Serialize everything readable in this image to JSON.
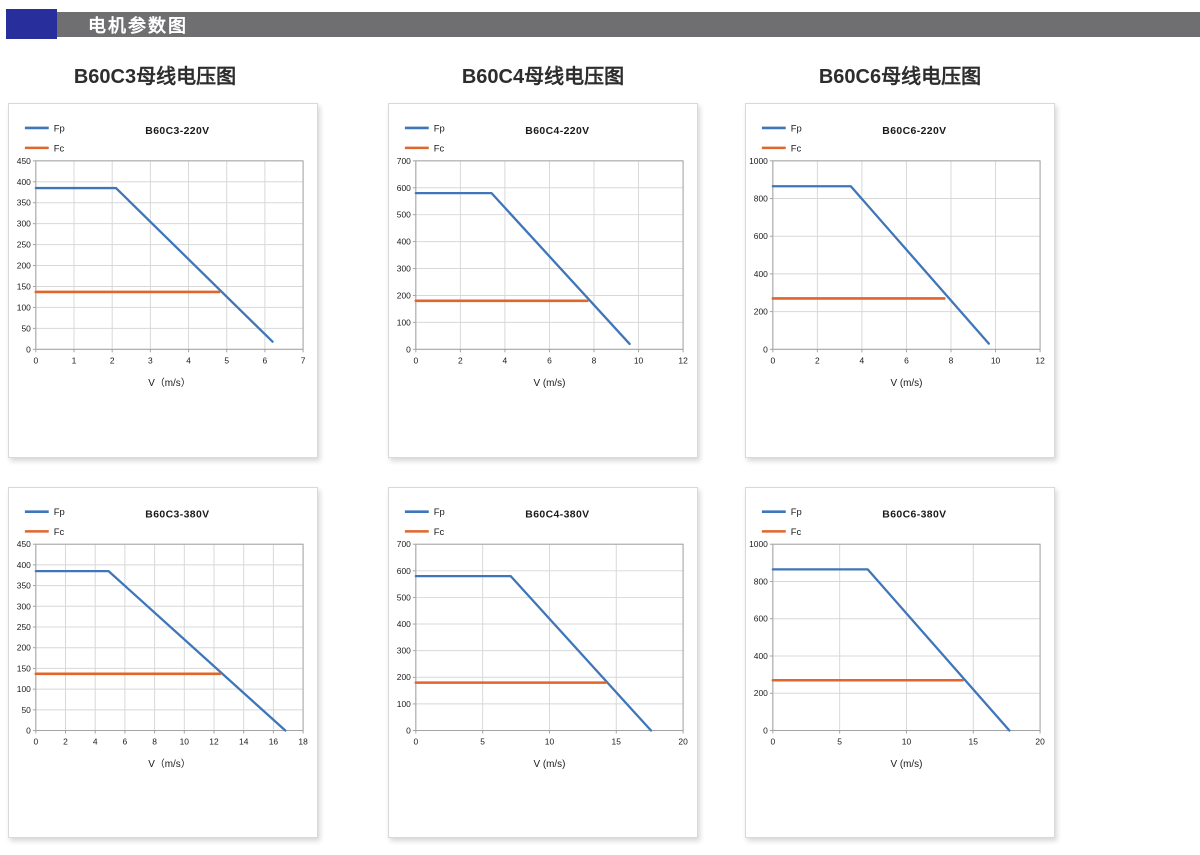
{
  "header": {
    "title": "电机参数图"
  },
  "column_titles": [
    "B60C3母线电压图",
    "B60C4母线电压图",
    "B60C6母线电压图"
  ],
  "colors": {
    "fp": "#3E76B9",
    "fc": "#E0662B",
    "grid": "#D8D8D8",
    "axis": "#A3A3A3",
    "tick_text": "#1A1A1A",
    "header_navy": "#282F9D",
    "header_gray": "#6F6F72"
  },
  "chart_data": [
    {
      "type": "line",
      "title": "B60C3-220V",
      "xlabel": "V（m/s）",
      "xlim": [
        0,
        7
      ],
      "xstep": 1,
      "ylim": [
        0,
        450
      ],
      "ystep": 50,
      "grid": true,
      "legend_position": "top-left",
      "series": [
        {
          "name": "Fp",
          "color": "fp",
          "points": [
            [
              0,
              385
            ],
            [
              2.1,
              385
            ],
            [
              6.2,
              18
            ]
          ]
        },
        {
          "name": "Fc",
          "color": "fc",
          "points": [
            [
              0,
              137
            ],
            [
              4.8,
              137
            ]
          ]
        }
      ]
    },
    {
      "type": "line",
      "title": "B60C4-220V",
      "xlabel": "V (m/s)",
      "xlim": [
        0,
        12
      ],
      "xstep": 2,
      "ylim": [
        0,
        700
      ],
      "ystep": 100,
      "grid": true,
      "legend_position": "top-left",
      "series": [
        {
          "name": "Fp",
          "color": "fp",
          "points": [
            [
              0,
              580
            ],
            [
              3.4,
              580
            ],
            [
              9.6,
              20
            ]
          ]
        },
        {
          "name": "Fc",
          "color": "fc",
          "points": [
            [
              0,
              180
            ],
            [
              7.7,
              180
            ]
          ]
        }
      ]
    },
    {
      "type": "line",
      "title": "B60C6-220V",
      "xlabel": "V (m/s)",
      "xlim": [
        0,
        12
      ],
      "xstep": 2,
      "ylim": [
        0,
        1000
      ],
      "ystep": 200,
      "grid": true,
      "legend_position": "top-left",
      "series": [
        {
          "name": "Fp",
          "color": "fp",
          "points": [
            [
              0,
              865
            ],
            [
              3.5,
              865
            ],
            [
              9.7,
              30
            ]
          ]
        },
        {
          "name": "Fc",
          "color": "fc",
          "points": [
            [
              0,
              270
            ],
            [
              7.7,
              270
            ]
          ]
        }
      ]
    },
    {
      "type": "line",
      "title": "B60C3-380V",
      "xlabel": "V（m/s）",
      "xlim": [
        0,
        18
      ],
      "xstep": 2,
      "ylim": [
        0,
        450
      ],
      "ystep": 50,
      "grid": true,
      "legend_position": "top-left",
      "series": [
        {
          "name": "Fp",
          "color": "fp",
          "points": [
            [
              0,
              385
            ],
            [
              4.9,
              385
            ],
            [
              16.8,
              0
            ]
          ]
        },
        {
          "name": "Fc",
          "color": "fc",
          "points": [
            [
              0,
              137
            ],
            [
              12.4,
              137
            ]
          ]
        }
      ]
    },
    {
      "type": "line",
      "title": "B60C4-380V",
      "xlabel": "V (m/s)",
      "xlim": [
        0,
        20
      ],
      "xstep": 5,
      "ylim": [
        0,
        700
      ],
      "ystep": 100,
      "grid": true,
      "legend_position": "top-left",
      "series": [
        {
          "name": "Fp",
          "color": "fp",
          "points": [
            [
              0,
              580
            ],
            [
              7.1,
              580
            ],
            [
              17.6,
              0
            ]
          ]
        },
        {
          "name": "Fc",
          "color": "fc",
          "points": [
            [
              0,
              180
            ],
            [
              14.2,
              180
            ]
          ]
        }
      ]
    },
    {
      "type": "line",
      "title": "B60C6-380V",
      "xlabel": "V (m/s)",
      "xlim": [
        0,
        20
      ],
      "xstep": 5,
      "ylim": [
        0,
        1000
      ],
      "ystep": 200,
      "grid": true,
      "legend_position": "top-left",
      "series": [
        {
          "name": "Fp",
          "color": "fp",
          "points": [
            [
              0,
              865
            ],
            [
              7.1,
              865
            ],
            [
              17.7,
              0
            ]
          ]
        },
        {
          "name": "Fc",
          "color": "fc",
          "points": [
            [
              0,
              270
            ],
            [
              14.2,
              270
            ]
          ]
        }
      ]
    }
  ]
}
